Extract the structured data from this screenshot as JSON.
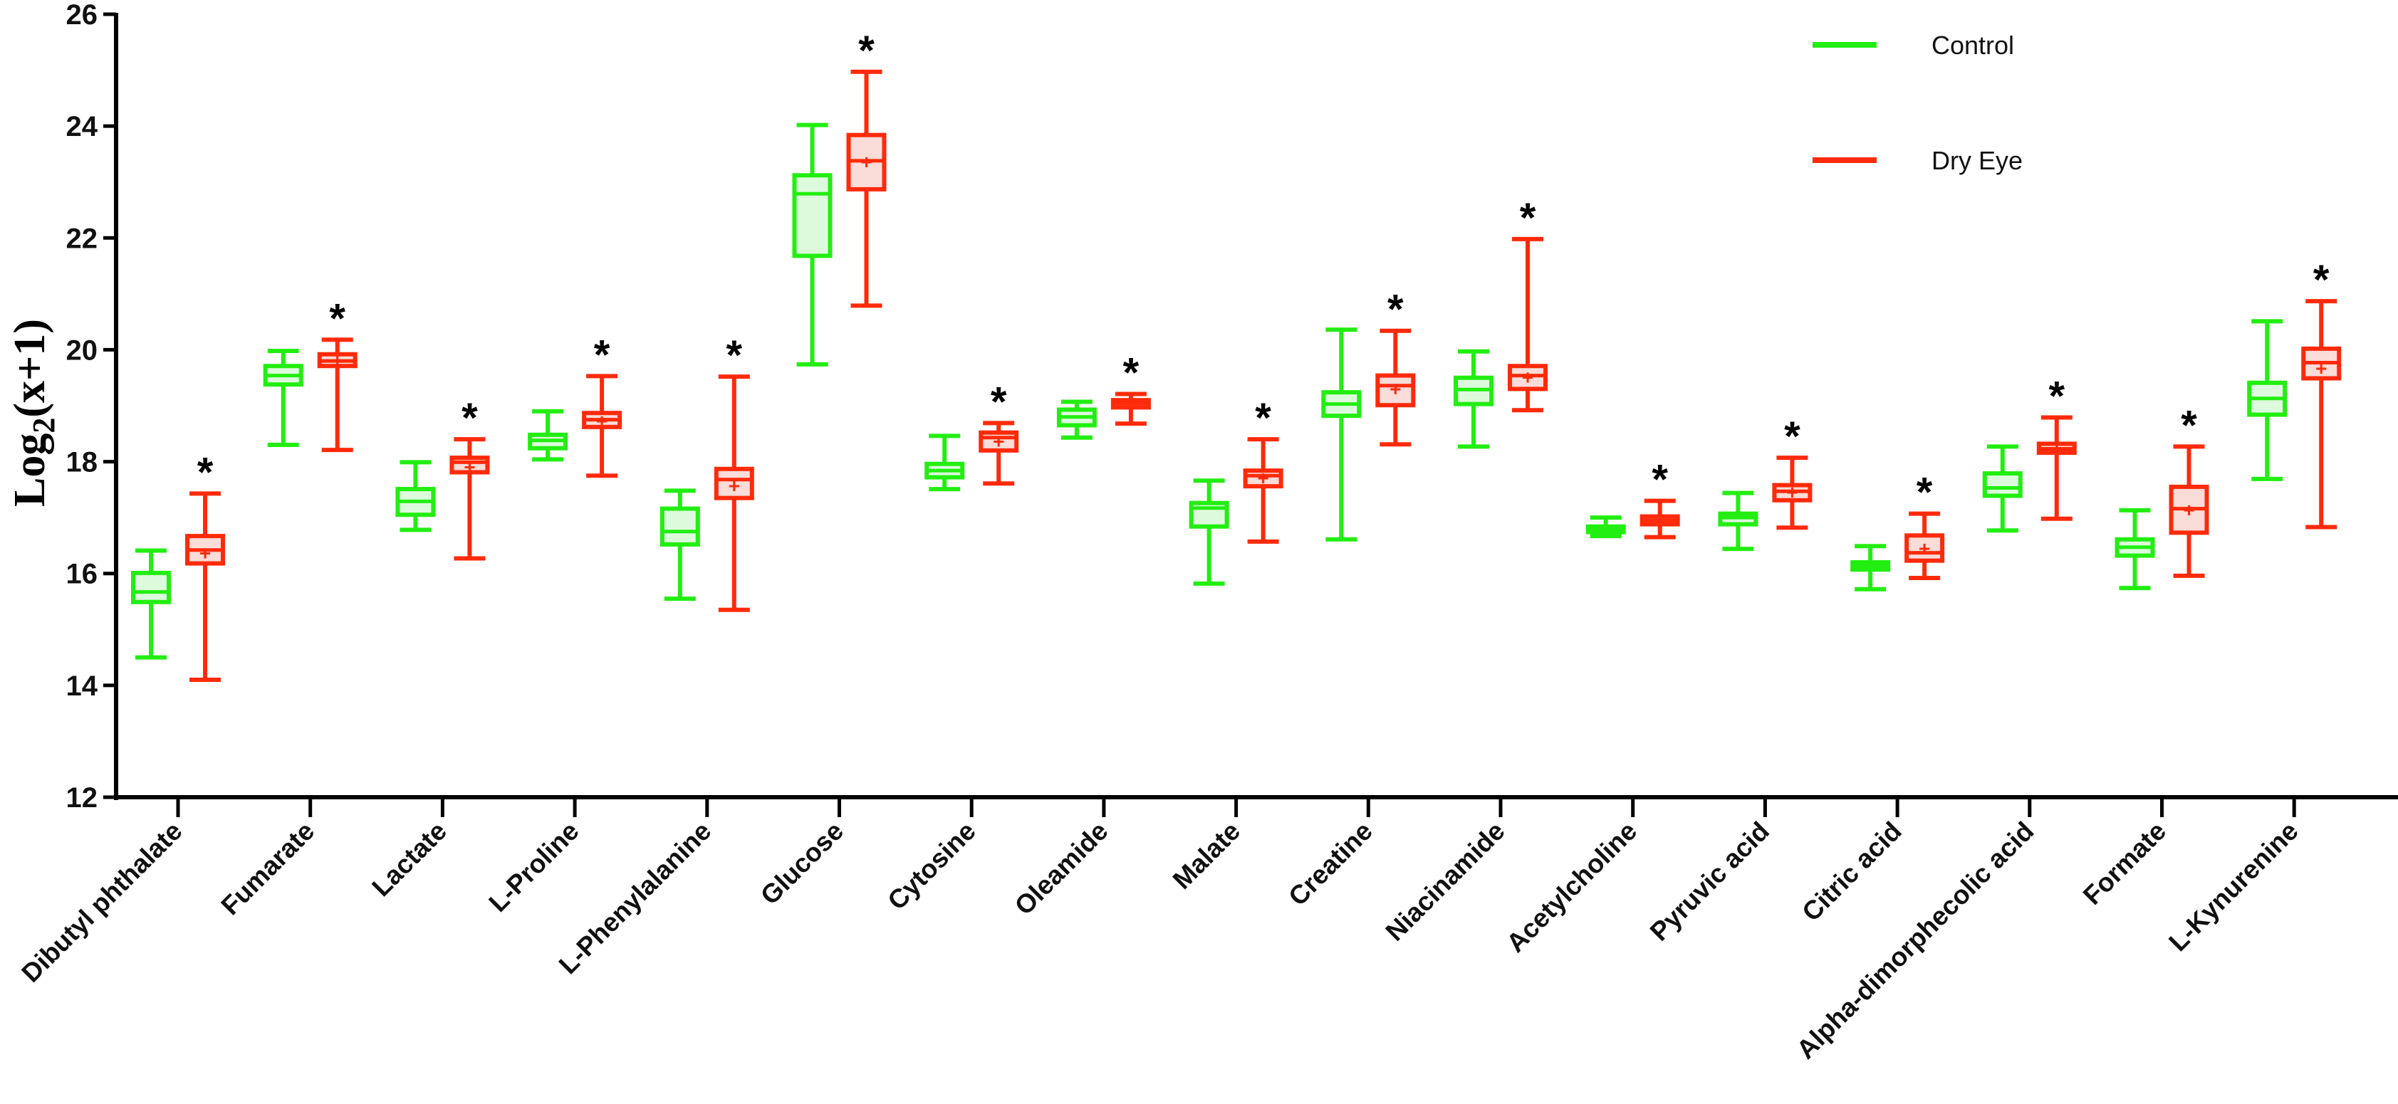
{
  "chart_data": {
    "type": "box",
    "title": "",
    "xlabel": "",
    "ylabel": "Log2(x+1)",
    "ylabel_parts": {
      "base": "Log",
      "sub": "2",
      "rest": "(x+1)"
    },
    "ylim": [
      12,
      26
    ],
    "yticks": [
      12,
      14,
      16,
      18,
      20,
      22,
      24,
      26
    ],
    "grid": false,
    "legend_position": "top-right",
    "significance_marker": "*",
    "categories": [
      "Dibutyl phthalate",
      "Fumarate",
      "Lactate",
      "L-Proline",
      "L-Phenylalanine",
      "Glucose",
      "Cytosine",
      "Oleamide",
      "Malate",
      "Creatine",
      "Niacinamide",
      "Acetylcholine",
      "Pyruvic acid",
      "Citric acid",
      "Alpha-dimorphecolic acid",
      "Formate",
      "L-Kynurenine"
    ],
    "significant": [
      true,
      true,
      true,
      true,
      true,
      true,
      true,
      true,
      true,
      true,
      true,
      true,
      true,
      true,
      true,
      true,
      true
    ],
    "series": [
      {
        "name": "Control",
        "color": "#22ee11",
        "fill": "#ddfadd",
        "boxes": [
          {
            "min": 14.5,
            "q1": 15.49,
            "median": 15.67,
            "q3": 16.01,
            "max": 16.41
          },
          {
            "min": 18.3,
            "q1": 19.38,
            "median": 19.54,
            "q3": 19.71,
            "max": 19.98
          },
          {
            "min": 16.78,
            "q1": 17.05,
            "median": 17.29,
            "q3": 17.51,
            "max": 17.99
          },
          {
            "min": 18.04,
            "q1": 18.24,
            "median": 18.38,
            "q3": 18.48,
            "max": 18.9
          },
          {
            "min": 15.55,
            "q1": 16.52,
            "median": 16.75,
            "q3": 17.16,
            "max": 17.48
          },
          {
            "min": 19.74,
            "q1": 21.68,
            "median": 22.79,
            "q3": 23.12,
            "max": 24.02
          },
          {
            "min": 17.51,
            "q1": 17.72,
            "median": 17.84,
            "q3": 17.96,
            "max": 18.46
          },
          {
            "min": 18.43,
            "q1": 18.65,
            "median": 18.8,
            "q3": 18.93,
            "max": 19.07
          },
          {
            "min": 15.82,
            "q1": 16.84,
            "median": 17.17,
            "q3": 17.26,
            "max": 17.66
          },
          {
            "min": 16.61,
            "q1": 18.82,
            "median": 19.03,
            "q3": 19.24,
            "max": 20.36
          },
          {
            "min": 18.27,
            "q1": 19.03,
            "median": 19.29,
            "q3": 19.5,
            "max": 19.97
          },
          {
            "min": 16.67,
            "q1": 16.74,
            "median": 16.79,
            "q3": 16.84,
            "max": 17.0
          },
          {
            "min": 16.44,
            "q1": 16.88,
            "median": 17.0,
            "q3": 17.07,
            "max": 17.44
          },
          {
            "min": 15.72,
            "q1": 16.07,
            "median": 16.13,
            "q3": 16.2,
            "max": 16.49
          },
          {
            "min": 16.77,
            "q1": 17.39,
            "median": 17.53,
            "q3": 17.79,
            "max": 18.27
          },
          {
            "min": 15.74,
            "q1": 16.32,
            "median": 16.47,
            "q3": 16.61,
            "max": 17.13
          },
          {
            "min": 17.69,
            "q1": 18.84,
            "median": 19.13,
            "q3": 19.41,
            "max": 20.51
          }
        ]
      },
      {
        "name": "Dry Eye",
        "color": "#ff2a0a",
        "fill": "#fadcd8",
        "boxes": [
          {
            "min": 14.1,
            "q1": 16.18,
            "median": 16.42,
            "q3": 16.67,
            "max": 17.43,
            "mean": 16.36
          },
          {
            "min": 18.21,
            "q1": 19.71,
            "median": 19.8,
            "q3": 19.92,
            "max": 20.18,
            "mean": 19.8
          },
          {
            "min": 16.27,
            "q1": 17.81,
            "median": 17.99,
            "q3": 18.07,
            "max": 18.4,
            "mean": 17.9
          },
          {
            "min": 17.75,
            "q1": 18.62,
            "median": 18.75,
            "q3": 18.87,
            "max": 19.53,
            "mean": 18.72
          },
          {
            "min": 15.35,
            "q1": 17.35,
            "median": 17.68,
            "q3": 17.87,
            "max": 19.52,
            "mean": 17.56
          },
          {
            "min": 20.79,
            "q1": 22.87,
            "median": 23.38,
            "q3": 23.84,
            "max": 24.97,
            "mean": 23.35
          },
          {
            "min": 17.61,
            "q1": 18.2,
            "median": 18.43,
            "q3": 18.52,
            "max": 18.69,
            "mean": 18.36
          },
          {
            "min": 18.68,
            "q1": 18.97,
            "median": 19.04,
            "q3": 19.1,
            "max": 19.21,
            "mean": 19.04
          },
          {
            "min": 16.57,
            "q1": 17.56,
            "median": 17.75,
            "q3": 17.84,
            "max": 18.4,
            "mean": 17.7
          },
          {
            "min": 18.31,
            "q1": 19.01,
            "median": 19.36,
            "q3": 19.54,
            "max": 20.34,
            "mean": 19.29
          },
          {
            "min": 18.92,
            "q1": 19.3,
            "median": 19.54,
            "q3": 19.71,
            "max": 21.98,
            "mean": 19.5
          },
          {
            "min": 16.65,
            "q1": 16.88,
            "median": 16.95,
            "q3": 17.02,
            "max": 17.3,
            "mean": 16.95
          },
          {
            "min": 16.82,
            "q1": 17.31,
            "median": 17.47,
            "q3": 17.58,
            "max": 18.07,
            "mean": 17.45
          },
          {
            "min": 15.92,
            "q1": 16.23,
            "median": 16.37,
            "q3": 16.68,
            "max": 17.07,
            "mean": 16.44
          },
          {
            "min": 16.98,
            "q1": 18.16,
            "median": 18.23,
            "q3": 18.32,
            "max": 18.79,
            "mean": 18.23
          },
          {
            "min": 15.96,
            "q1": 16.73,
            "median": 17.16,
            "q3": 17.55,
            "max": 18.27,
            "mean": 17.13
          },
          {
            "min": 16.83,
            "q1": 19.49,
            "median": 19.77,
            "q3": 20.02,
            "max": 20.87,
            "mean": 19.66
          }
        ]
      }
    ]
  }
}
